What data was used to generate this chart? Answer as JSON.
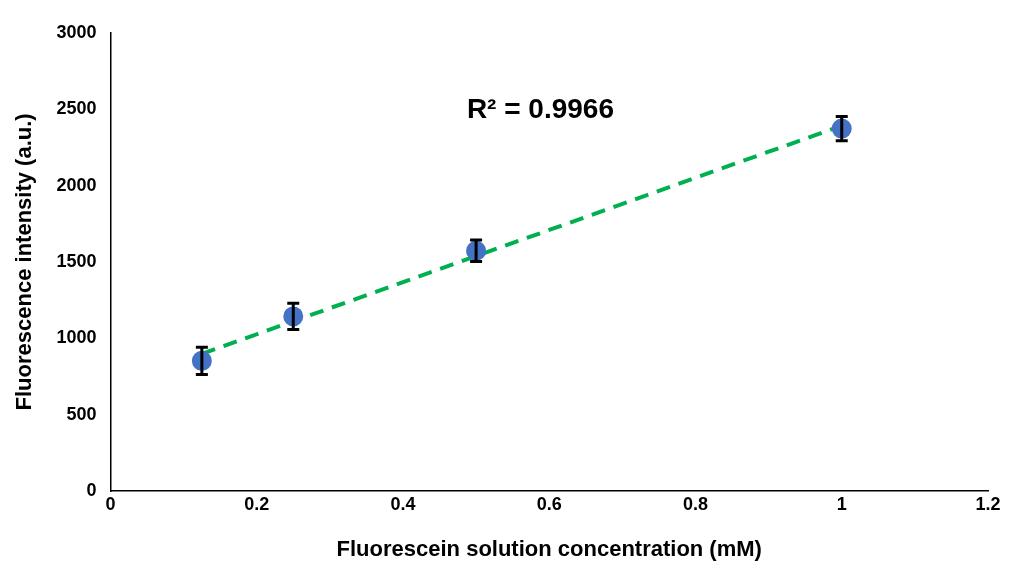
{
  "chart_data": {
    "type": "scatter",
    "xlabel": "Fluorescein solution concentration (mM)",
    "ylabel": "Fluorescence intensity (a.u.)",
    "series": [
      {
        "color": "#4472c4",
        "x": [
          0.125,
          0.25,
          0.5,
          1
        ],
        "values": [
          852,
          1143,
          1573,
          2373
        ],
        "errors": [
          90,
          86,
          70,
          79
        ],
        "marker": "circle"
      },
      {
        "type": "line",
        "color": "#00b050",
        "x": [
          0.125,
          1
        ],
        "values": [
          898,
          2392
        ],
        "line_style": "dashed",
        "marker": "none"
      }
    ],
    "annotations": [
      "R² = 0.9966"
    ],
    "xlim": [
      0,
      1.2
    ],
    "xticks": [
      0,
      0.2,
      0.4,
      0.6,
      0.8,
      1,
      1.2
    ],
    "ylim": [
      0,
      3000
    ],
    "yticks": [
      0,
      500,
      1000,
      1500,
      2000,
      2500,
      3000
    ],
    "grid": false,
    "legend": false
  }
}
